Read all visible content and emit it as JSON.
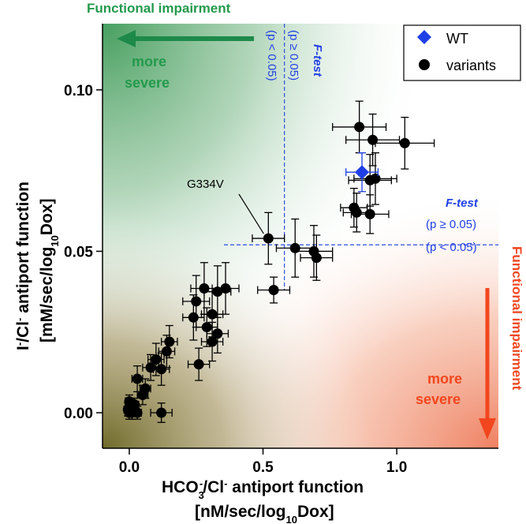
{
  "chart_data": {
    "type": "scatter",
    "xlabel_line1": "HCO",
    "xlabel_sub1": "3",
    "xlabel_sup1": "-",
    "xlabel_mid": "/Cl",
    "xlabel_sup2": "-",
    "xlabel_end": " antiport function",
    "xlabel_line2_pre": "[nM/sec/log",
    "xlabel_line2_sub": "10",
    "xlabel_line2_post": "Dox]",
    "ylabel_line1_a": "I",
    "ylabel_line1_sup1": "-",
    "ylabel_line1_b": "/Cl",
    "ylabel_line1_sup2": "-",
    "ylabel_line1_c": " antiport function",
    "ylabel_line2_pre": "[mM/sec/log",
    "ylabel_line2_sub": "10",
    "ylabel_line2_post": "Dox]",
    "xlim": [
      -0.1,
      1.38
    ],
    "ylim": [
      -0.011,
      0.1205
    ],
    "xticks": [
      0.0,
      0.5,
      1.0
    ],
    "xtick_labels": [
      "0.0",
      "0.5",
      "1.0"
    ],
    "yticks": [
      0.0,
      0.05,
      0.1
    ],
    "ytick_labels": [
      "0.00",
      "0.05",
      "0.10"
    ],
    "legend": {
      "position": "top-right",
      "entries": [
        {
          "label": "WT",
          "marker": "diamond",
          "color": "#1f3fe6"
        },
        {
          "label": "variants",
          "marker": "circle",
          "color": "#000000"
        }
      ]
    },
    "threshold_lines": {
      "x": 0.58,
      "y": 0.052,
      "color": "#2a4fe0"
    },
    "wt": {
      "x": 0.87,
      "y": 0.0745,
      "xerr": 0.06,
      "yerr": 0.006
    },
    "variants": [
      {
        "x": 0.86,
        "y": 0.0885,
        "xerr": 0.1,
        "yerr": 0.008
      },
      {
        "x": 0.91,
        "y": 0.0845,
        "xerr": 0.1,
        "yerr": 0.008
      },
      {
        "x": 1.03,
        "y": 0.0835,
        "xerr": 0.11,
        "yerr": 0.008
      },
      {
        "x": 0.92,
        "y": 0.0725,
        "xerr": 0.08,
        "yerr": 0.008
      },
      {
        "x": 0.9,
        "y": 0.072,
        "xerr": 0.08,
        "yerr": 0.008
      },
      {
        "x": 0.84,
        "y": 0.0635,
        "xerr": 0.05,
        "yerr": 0.006
      },
      {
        "x": 0.85,
        "y": 0.062,
        "xerr": 0.05,
        "yerr": 0.006
      },
      {
        "x": 0.9,
        "y": 0.0615,
        "xerr": 0.07,
        "yerr": 0.006
      },
      {
        "x": 0.52,
        "y": 0.054,
        "xerr": 0.06,
        "yerr": 0.008
      },
      {
        "x": 0.62,
        "y": 0.051,
        "xerr": 0.07,
        "yerr": 0.009
      },
      {
        "x": 0.69,
        "y": 0.05,
        "xerr": 0.07,
        "yerr": 0.008
      },
      {
        "x": 0.7,
        "y": 0.048,
        "xerr": 0.06,
        "yerr": 0.007
      },
      {
        "x": 0.54,
        "y": 0.038,
        "xerr": 0.06,
        "yerr": 0.004
      },
      {
        "x": 0.28,
        "y": 0.0385,
        "xerr": 0.05,
        "yerr": 0.008
      },
      {
        "x": 0.33,
        "y": 0.0375,
        "xerr": 0.05,
        "yerr": 0.008
      },
      {
        "x": 0.36,
        "y": 0.0385,
        "xerr": 0.05,
        "yerr": 0.008
      },
      {
        "x": 0.25,
        "y": 0.0345,
        "xerr": 0.05,
        "yerr": 0.008
      },
      {
        "x": 0.31,
        "y": 0.0305,
        "xerr": 0.04,
        "yerr": 0.007
      },
      {
        "x": 0.24,
        "y": 0.0295,
        "xerr": 0.04,
        "yerr": 0.007
      },
      {
        "x": 0.29,
        "y": 0.0265,
        "xerr": 0.04,
        "yerr": 0.006
      },
      {
        "x": 0.33,
        "y": 0.0245,
        "xerr": 0.04,
        "yerr": 0.006
      },
      {
        "x": 0.31,
        "y": 0.022,
        "xerr": 0.04,
        "yerr": 0.006
      },
      {
        "x": 0.15,
        "y": 0.022,
        "xerr": 0.03,
        "yerr": 0.005
      },
      {
        "x": 0.14,
        "y": 0.019,
        "xerr": 0.03,
        "yerr": 0.005
      },
      {
        "x": 0.1,
        "y": 0.0165,
        "xerr": 0.03,
        "yerr": 0.005
      },
      {
        "x": 0.12,
        "y": 0.0135,
        "xerr": 0.03,
        "yerr": 0.005
      },
      {
        "x": 0.08,
        "y": 0.014,
        "xerr": 0.03,
        "yerr": 0.004
      },
      {
        "x": 0.03,
        "y": 0.0105,
        "xerr": 0.02,
        "yerr": 0.004
      },
      {
        "x": 0.06,
        "y": 0.0075,
        "xerr": 0.02,
        "yerr": 0.003
      },
      {
        "x": 0.05,
        "y": 0.0055,
        "xerr": 0.02,
        "yerr": 0.003
      },
      {
        "x": 0.26,
        "y": 0.015,
        "xerr": 0.04,
        "yerr": 0.005
      },
      {
        "x": 0.12,
        "y": 0.0,
        "xerr": 0.04,
        "yerr": 0.003
      },
      {
        "x": 0.0,
        "y": 0.0035,
        "xerr": 0.015,
        "yerr": 0.002
      },
      {
        "x": 0.01,
        "y": 0.002,
        "xerr": 0.015,
        "yerr": 0.002
      },
      {
        "x": 0.02,
        "y": 0.001,
        "xerr": 0.015,
        "yerr": 0.002
      },
      {
        "x": 0.0,
        "y": 0.0,
        "xerr": 0.015,
        "yerr": 0.002
      },
      {
        "x": 0.01,
        "y": 0.0,
        "xerr": 0.015,
        "yerr": 0.002
      },
      {
        "x": 0.03,
        "y": 0.0,
        "xerr": 0.015,
        "yerr": 0.002
      },
      {
        "x": -0.005,
        "y": 0.001,
        "xerr": 0.015,
        "yerr": 0.002
      },
      {
        "x": 0.02,
        "y": 0.0025,
        "xerr": 0.015,
        "yerr": 0.002
      }
    ],
    "annotation": {
      "text": "G334V",
      "x": 0.52,
      "y": 0.054
    }
  },
  "labels": {
    "func_impair_top": "Functional impairment",
    "func_impair_right": "Functional impairment",
    "more_severe_top_1": "more",
    "more_severe_top_2": "severe",
    "more_severe_bottom_1": "more",
    "more_severe_bottom_2": "severe",
    "ftest_vertical_title": "F-test",
    "ftest_vertical_ge": "(p ≥ 0.05)",
    "ftest_vertical_lt": "(p < 0.05)",
    "ftest_horizontal_title": "F-test",
    "ftest_horizontal_ge": "(p ≥ 0.05)",
    "ftest_horizontal_lt": "(p < 0.05)"
  },
  "colors": {
    "green_text": "#239a4c",
    "green_arrow": "#1d8a4a",
    "red_text": "#f2461e",
    "red_arrow": "#f2461e",
    "blue": "#1f3fe6"
  }
}
